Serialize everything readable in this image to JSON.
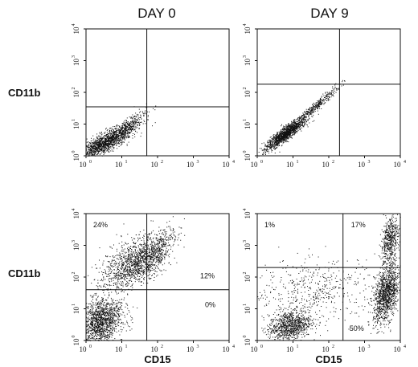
{
  "columns": [
    "DAY 0",
    "DAY 9"
  ],
  "row_labels": [
    "CD11b",
    "CD11b"
  ],
  "x_axis_labels": [
    "CD15",
    "CD15"
  ],
  "chart_data": [
    {
      "type": "scatter",
      "panel": "top-left",
      "column": "DAY 0",
      "ylabel": "CD11b",
      "xlabel": "",
      "xscale": "log",
      "yscale": "log",
      "xlim": [
        1,
        10000
      ],
      "ylim": [
        1,
        10000
      ],
      "xticks": [
        "10",
        "10",
        "10",
        "10",
        "10"
      ],
      "xtick_exponents": [
        "0",
        "1",
        "2",
        "3",
        "4"
      ],
      "yticks": [
        "10",
        "10",
        "10",
        "10",
        "10"
      ],
      "ytick_exponents": [
        "0",
        "1",
        "2",
        "3",
        "4"
      ],
      "gate": {
        "x": 50,
        "y": 35
      },
      "quadrant_labels": [],
      "populations": [
        {
          "cx": 3,
          "cy": 2.5,
          "sx": 0.45,
          "sy": 0.3,
          "rho": 0.85,
          "n": 1500
        },
        {
          "cx": 12,
          "cy": 7,
          "sx": 0.3,
          "sy": 0.3,
          "rho": 0.9,
          "n": 300
        }
      ]
    },
    {
      "type": "scatter",
      "panel": "top-right",
      "column": "DAY 9",
      "ylabel": "",
      "xlabel": "",
      "xscale": "log",
      "yscale": "log",
      "xlim": [
        1,
        10000
      ],
      "ylim": [
        1,
        10000
      ],
      "xticks": [
        "10",
        "10",
        "10",
        "10",
        "10"
      ],
      "xtick_exponents": [
        "0",
        "1",
        "2",
        "3",
        "4"
      ],
      "yticks": [
        "10",
        "10",
        "10",
        "10",
        "10"
      ],
      "ytick_exponents": [
        "0",
        "1",
        "2",
        "3",
        "4"
      ],
      "gate": {
        "x": 200,
        "y": 180
      },
      "quadrant_labels": [],
      "populations": [
        {
          "cx": 6,
          "cy": 5,
          "sx": 0.28,
          "sy": 0.25,
          "rho": 0.9,
          "n": 1300
        },
        {
          "cx": 40,
          "cy": 35,
          "sx": 0.35,
          "sy": 0.35,
          "rho": 0.97,
          "n": 350
        }
      ]
    },
    {
      "type": "scatter",
      "panel": "bottom-left",
      "column": "DAY 0",
      "ylabel": "CD11b",
      "xlabel": "CD15",
      "xscale": "log",
      "yscale": "log",
      "xlim": [
        1,
        10000
      ],
      "ylim": [
        1,
        10000
      ],
      "xticks": [
        "10",
        "10",
        "10",
        "10",
        "10"
      ],
      "xtick_exponents": [
        "0",
        "1",
        "2",
        "3",
        "4"
      ],
      "yticks": [
        "10",
        "10",
        "10",
        "10",
        "10"
      ],
      "ytick_exponents": [
        "0",
        "1",
        "2",
        "3",
        "4"
      ],
      "gate": {
        "x": 50,
        "y": 40
      },
      "quadrant_labels": [
        {
          "quadrant": "upper-left",
          "text": "24%"
        },
        {
          "quadrant": "upper-right",
          "text": "12%"
        },
        {
          "quadrant": "lower-right",
          "text": "0%"
        }
      ],
      "populations": [
        {
          "cx": 2.5,
          "cy": 4,
          "sx": 0.3,
          "sy": 0.35,
          "rho": 0.2,
          "n": 1400
        },
        {
          "cx": 20,
          "cy": 300,
          "sx": 0.45,
          "sy": 0.45,
          "rho": 0.6,
          "n": 1100
        },
        {
          "cx": 80,
          "cy": 500,
          "sx": 0.3,
          "sy": 0.4,
          "rho": 0.7,
          "n": 500
        }
      ]
    },
    {
      "type": "scatter",
      "panel": "bottom-right",
      "column": "DAY 9",
      "ylabel": "",
      "xlabel": "CD15",
      "xscale": "log",
      "yscale": "log",
      "xlim": [
        1,
        10000
      ],
      "ylim": [
        1,
        10000
      ],
      "xticks": [
        "10",
        "10",
        "10",
        "10",
        "10"
      ],
      "xtick_exponents": [
        "0",
        "1",
        "2",
        "3",
        "4"
      ],
      "yticks": [
        "10",
        "10",
        "10",
        "10",
        "10"
      ],
      "ytick_exponents": [
        "0",
        "1",
        "2",
        "3",
        "4"
      ],
      "gate": {
        "x": 250,
        "y": 200
      },
      "quadrant_labels": [
        {
          "quadrant": "upper-left",
          "text": "1%"
        },
        {
          "quadrant": "upper-right",
          "text": "17%"
        },
        {
          "quadrant": "lower-right",
          "text": "50%"
        }
      ],
      "populations": [
        {
          "cx": 8,
          "cy": 3,
          "sx": 0.3,
          "sy": 0.25,
          "rho": 0.3,
          "n": 900
        },
        {
          "cx": 4000,
          "cy": 30,
          "sx": 0.18,
          "sy": 0.45,
          "rho": 0.4,
          "n": 1200
        },
        {
          "cx": 5000,
          "cy": 1500,
          "sx": 0.12,
          "sy": 0.35,
          "rho": 0.3,
          "n": 500
        },
        {
          "cx": 40,
          "cy": 40,
          "sx": 0.9,
          "sy": 0.5,
          "rho": 0.1,
          "n": 500
        }
      ]
    }
  ]
}
